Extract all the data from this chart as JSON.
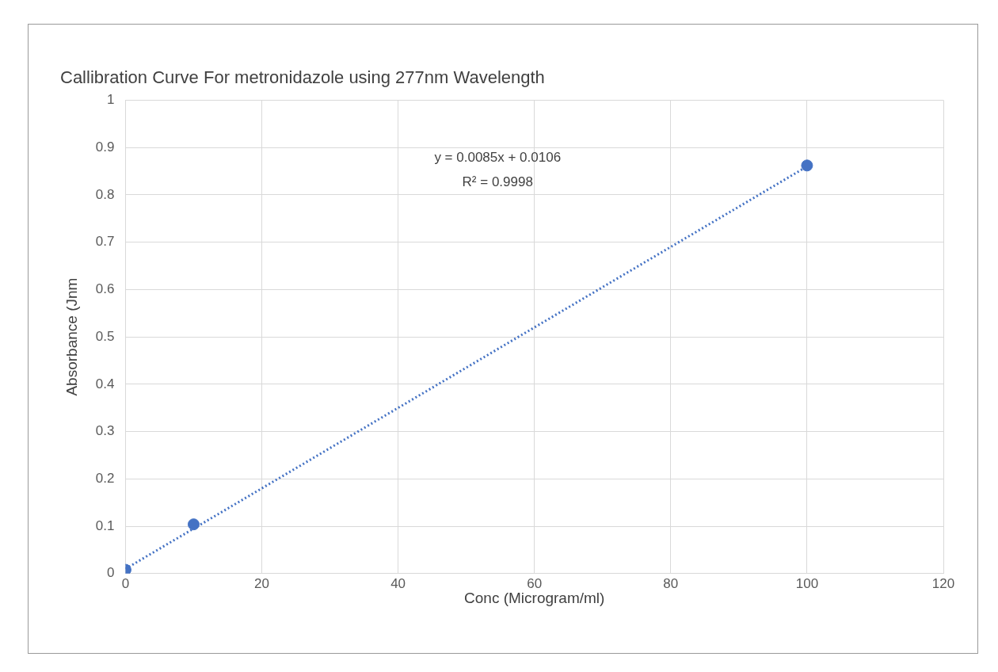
{
  "chart_data": {
    "type": "scatter",
    "title": "Callibration Curve For metronidazole using 277nm Wavelength",
    "xlabel": "Conc (Microgram/ml)",
    "ylabel": "Absorbance (Jnm",
    "series": [
      {
        "type": "scatter",
        "color": "#4472c4",
        "x": [
          0,
          10,
          100
        ],
        "values": [
          0.008,
          0.104,
          0.862
        ],
        "marker": "circle"
      },
      {
        "type": "line",
        "color": "#4472c4",
        "x": [
          0,
          100
        ],
        "values": [
          0.01,
          0.86
        ],
        "line_style": "dotted",
        "marker": "none"
      }
    ],
    "xlim": [
      0,
      120
    ],
    "xticks": [
      0,
      20,
      40,
      60,
      80,
      100,
      120
    ],
    "ylim": [
      0,
      1
    ],
    "yticks": [
      0,
      0.1,
      0.2,
      0.3,
      0.4,
      0.5,
      0.6,
      0.7,
      0.8,
      0.9,
      1
    ],
    "grid": true,
    "legend": false,
    "annotations": [
      "y = 0.0085x + 0.0106",
      "R² = 0.9998"
    ]
  }
}
